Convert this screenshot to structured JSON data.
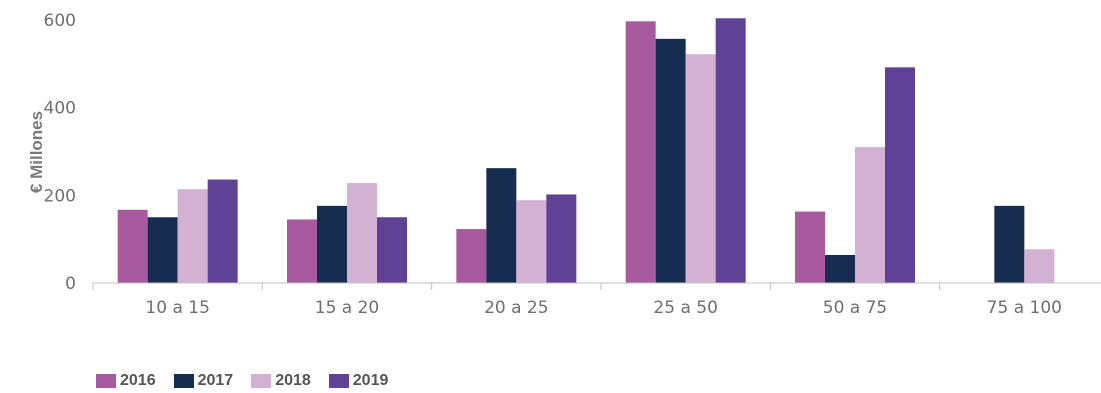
{
  "chart_data": {
    "type": "bar",
    "title": "",
    "xlabel": "",
    "ylabel": "€ Millones",
    "categories": [
      "10 a 15",
      "15 a 20",
      "20 a 25",
      "25 a 50",
      "50 a 75",
      "75 a 100"
    ],
    "series": [
      {
        "name": "2016",
        "color": "#A85A9E",
        "values": [
          167,
          145,
          123,
          597,
          163,
          null
        ]
      },
      {
        "name": "2017",
        "color": "#172D4F",
        "values": [
          150,
          176,
          262,
          557,
          64,
          176
        ]
      },
      {
        "name": "2018",
        "color": "#D3B1D2",
        "values": [
          214,
          228,
          189,
          522,
          310,
          77
        ]
      },
      {
        "name": "2019",
        "color": "#5F4195",
        "values": [
          236,
          150,
          202,
          604,
          492,
          null
        ]
      }
    ],
    "yticks": [
      "0",
      "200",
      "400",
      "600"
    ],
    "ylim": [
      0,
      600
    ],
    "grid": false,
    "legend_position": "bottom-left"
  }
}
